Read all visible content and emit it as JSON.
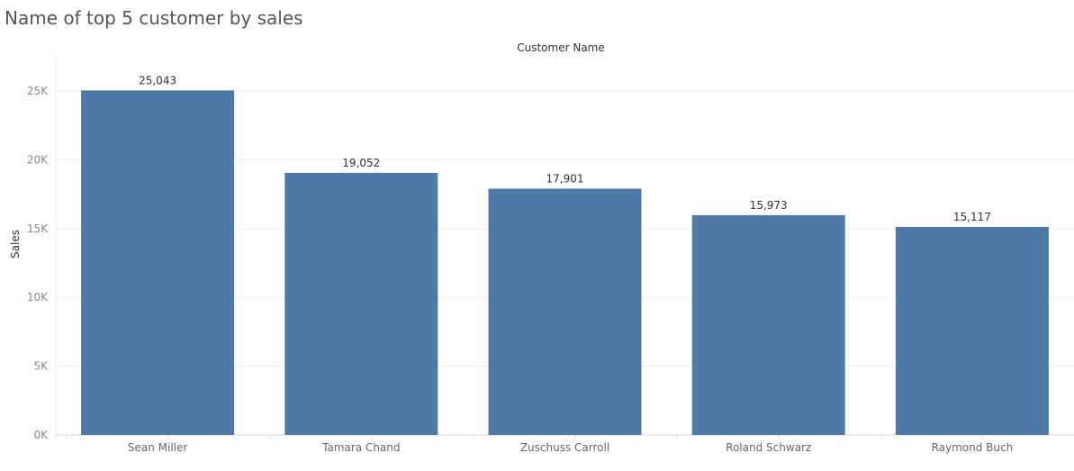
{
  "chart_data": {
    "type": "bar",
    "title": "Name of top 5 customer by sales",
    "xlabel": "Customer Name",
    "ylabel": "Sales",
    "categories": [
      "Sean Miller",
      "Tamara Chand",
      "Zuschuss Carroll",
      "Roland Schwarz",
      "Raymond Buch"
    ],
    "values": [
      25043,
      19052,
      17901,
      15973,
      15117
    ],
    "data_labels": [
      "25,043",
      "19,052",
      "17,901",
      "15,973",
      "15,117"
    ],
    "yticks": [
      0,
      5000,
      10000,
      15000,
      20000,
      25000
    ],
    "ytick_labels": [
      "0K",
      "5K",
      "10K",
      "15K",
      "20K",
      "25K"
    ],
    "ylim": [
      0,
      27500
    ],
    "grid": true,
    "legend": "none",
    "bar_color": "#4e79a7"
  }
}
